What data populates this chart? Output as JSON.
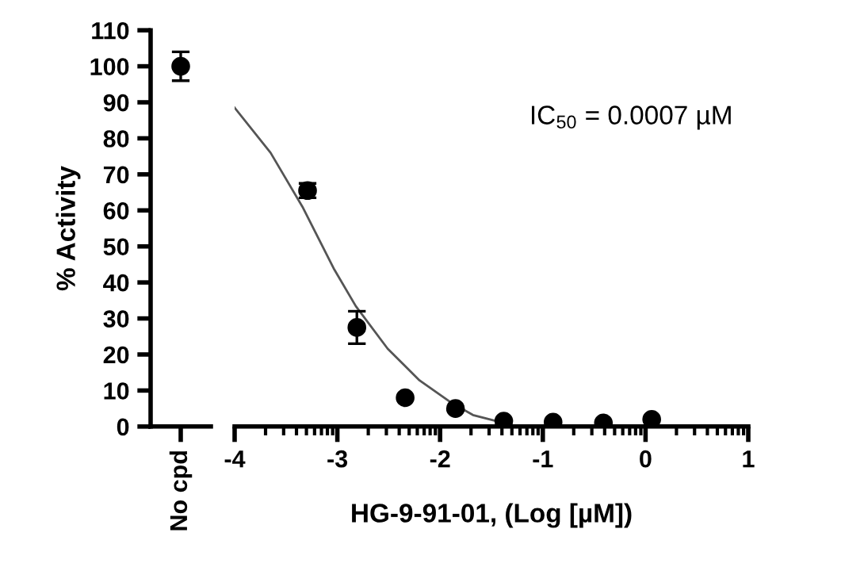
{
  "chart_data": [
    {
      "type": "scatter",
      "categories": [
        "No cpd"
      ],
      "series": [
        {
          "color": "#000000",
          "values": [
            100
          ],
          "errors": [
            4
          ]
        }
      ],
      "ylabel": "% Activity",
      "ylim": [
        0,
        110
      ],
      "yticks": [
        0,
        10,
        20,
        30,
        40,
        50,
        60,
        70,
        80,
        90,
        100,
        110
      ],
      "marker": "circle"
    },
    {
      "type": "scatter",
      "x": [
        -3.29,
        -2.81,
        -2.34,
        -1.85,
        -1.38,
        -0.9,
        -0.41,
        0.06
      ],
      "series": [
        {
          "color": "#000000",
          "values": [
            65.5,
            27.5,
            8,
            5,
            1.5,
            1.2,
            1,
            2
          ],
          "errors": [
            2,
            4.5,
            null,
            null,
            null,
            null,
            null,
            null
          ]
        },
        {
          "type": "line",
          "color": "#555555",
          "marker": "none",
          "x": [
            -4,
            -3.65,
            -3.34,
            -3.03,
            -2.82,
            -2.51,
            -2.2,
            -1.89,
            -1.68,
            -1.45
          ],
          "values": [
            88.5,
            76,
            61,
            43.6,
            33.4,
            21.6,
            12.8,
            6.6,
            3.2,
            1.5
          ]
        }
      ],
      "xlabel": "HG-9-91-01, (Log [µM])",
      "xlim": [
        -4,
        1
      ],
      "xticks": [
        -4,
        -3,
        -2,
        -1,
        0,
        1
      ],
      "ylim": [
        0,
        110
      ],
      "tick_labels": "x",
      "annotations": [
        "IC$_{50}$ = 0.0007 µM"
      ],
      "marker": "circle"
    }
  ]
}
